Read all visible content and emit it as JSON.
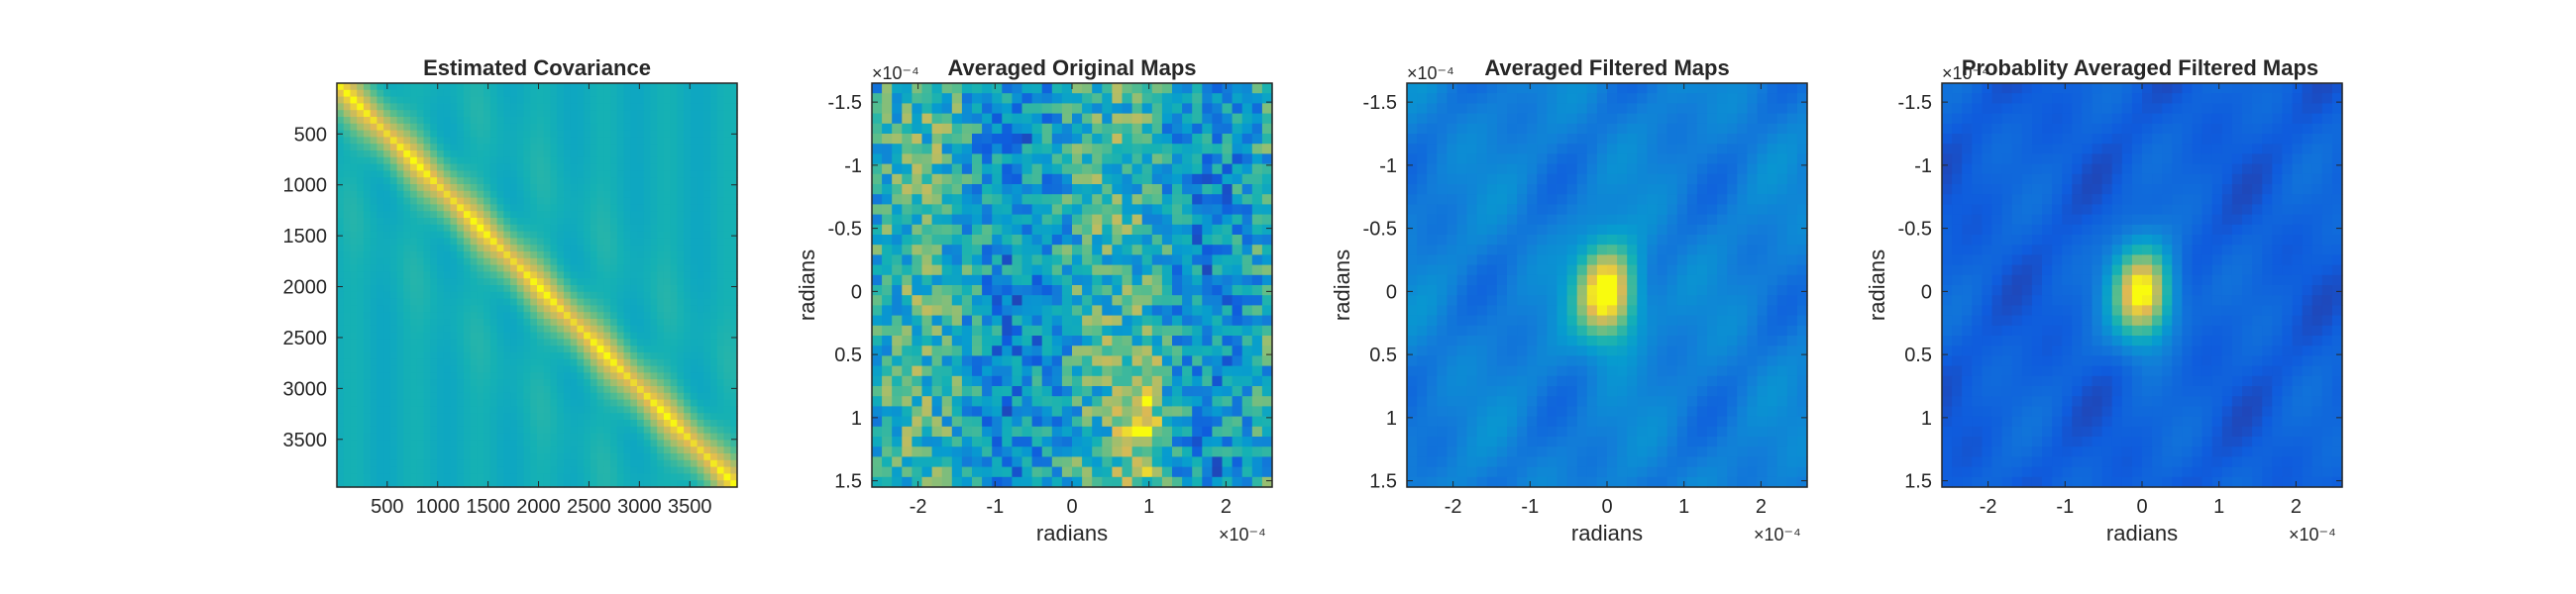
{
  "figure": {
    "background": "#ffffff",
    "colormap": "parula"
  },
  "chart_data": [
    {
      "type": "heatmap",
      "title": "Estimated Covariance",
      "xlabel": "",
      "ylabel": "",
      "xlim": [
        1,
        3969
      ],
      "ylim": [
        1,
        3969
      ],
      "y_reversed": true,
      "xticks": [
        500,
        1000,
        1500,
        2000,
        2500,
        3000,
        3500
      ],
      "xtick_labels": [
        "500",
        "1000",
        "1500",
        "2000",
        "2500",
        "3000",
        "3500"
      ],
      "yticks": [
        500,
        1000,
        1500,
        2000,
        2500,
        3000,
        3500
      ],
      "ytick_labels": [
        "500",
        "1000",
        "1500",
        "2000",
        "2500",
        "3000",
        "3500"
      ],
      "x_exponent": "",
      "y_exponent": "",
      "pattern": "banded diagonal: strongest on the main diagonal, periodic off-diagonal stripes",
      "grid": false
    },
    {
      "type": "heatmap",
      "title": "Averaged Original Maps",
      "xlabel": "radians",
      "ylabel": "radians",
      "xlim": [
        -2.6,
        2.6
      ],
      "ylim": [
        -1.65,
        1.55
      ],
      "y_reversed": true,
      "xticks": [
        -2,
        -1,
        0,
        1,
        2
      ],
      "xtick_labels": [
        "-2",
        "-1",
        "0",
        "1",
        "2"
      ],
      "yticks": [
        -1.5,
        -1,
        -0.5,
        0,
        0.5,
        1,
        1.5
      ],
      "ytick_labels": [
        "-1.5",
        "-1",
        "-0.5",
        "0",
        "0.5",
        "1",
        "1.5"
      ],
      "x_exponent": "×10⁻⁴",
      "y_exponent": "×10⁻⁴",
      "pattern": "noisy pixelated map, bright streak near x=0.9, y=0.7..1.4",
      "grid": false
    },
    {
      "type": "heatmap",
      "title": "Averaged Filtered Maps",
      "xlabel": "radians",
      "ylabel": "radians",
      "xlim": [
        -2.6,
        2.6
      ],
      "ylim": [
        -1.65,
        1.55
      ],
      "y_reversed": true,
      "xticks": [
        -2,
        -1,
        0,
        1,
        2
      ],
      "xtick_labels": [
        "-2",
        "-1",
        "0",
        "1",
        "2"
      ],
      "yticks": [
        -1.5,
        -1,
        -0.5,
        0,
        0.5,
        1,
        1.5
      ],
      "ytick_labels": [
        "-1.5",
        "-1",
        "-0.5",
        "0",
        "0.5",
        "1",
        "1.5"
      ],
      "x_exponent": "×10⁻⁴",
      "y_exponent": "×10⁻⁴",
      "peak": {
        "x": 0,
        "y": 0.05,
        "level": 1.0
      },
      "pattern": "smooth map, central bright peak at origin",
      "grid": false
    },
    {
      "type": "heatmap",
      "title": "Probablity Averaged Filtered Maps",
      "xlabel": "radians",
      "ylabel": "radians",
      "xlim": [
        -2.6,
        2.6
      ],
      "ylim": [
        -1.65,
        1.55
      ],
      "y_reversed": true,
      "xticks": [
        -2,
        -1,
        0,
        1,
        2
      ],
      "xtick_labels": [
        "-2",
        "-1",
        "0",
        "1",
        "2"
      ],
      "yticks": [
        -1.5,
        -1,
        -0.5,
        0,
        0.5,
        1,
        1.5
      ],
      "ytick_labels": [
        "-1.5",
        "-1",
        "-0.5",
        "0",
        "0.5",
        "1",
        "1.5"
      ],
      "x_exponent": "×10⁻⁴",
      "y_exponent": "×10⁻⁴",
      "peak": {
        "x": 0,
        "y": 0.05,
        "level": 1.0
      },
      "pattern": "smooth dark map, compact central bright peak",
      "grid": false
    }
  ]
}
